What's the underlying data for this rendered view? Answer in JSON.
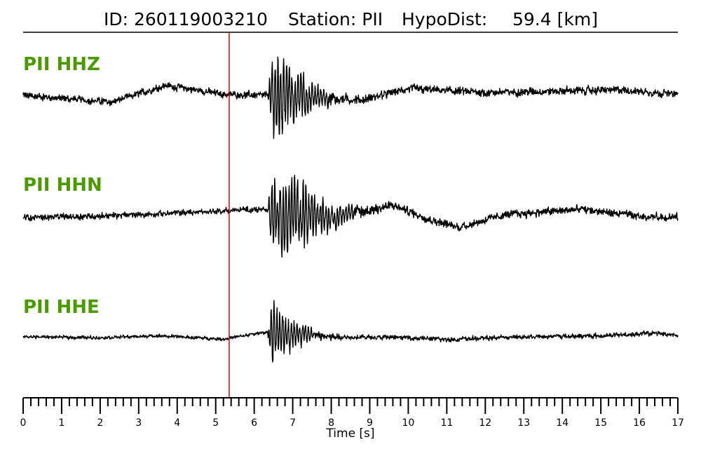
{
  "chart_data": {
    "type": "line",
    "title": {
      "id_label": "ID: 260119003210",
      "station_label": "Station: PII",
      "hypodist_label": "HypoDist:",
      "hypodist_value": "59.4 [km]"
    },
    "xlabel": "Time [s]",
    "xlim": [
      0,
      17
    ],
    "x_tick_labels": [
      "0",
      "1",
      "2",
      "3",
      "4",
      "5",
      "6",
      "7",
      "8",
      "9",
      "10",
      "11",
      "12",
      "13",
      "14",
      "15",
      "16",
      "17"
    ],
    "minor_tick_step": 0.2,
    "pick_time": 5.35,
    "pick_color": "#e00000",
    "label_color": "#4a9a00",
    "trace_color": "#000000",
    "series": [
      {
        "name": "PII HHZ",
        "noise_amplitude": 0.09,
        "signal_amplitude": 1.0,
        "envelope": [
          [
            0,
            0.09
          ],
          [
            6.35,
            0.09
          ],
          [
            6.45,
            1.0
          ],
          [
            6.9,
            0.8
          ],
          [
            7.3,
            0.5
          ],
          [
            7.8,
            0.22
          ],
          [
            8.5,
            0.12
          ],
          [
            9.5,
            0.1
          ],
          [
            17,
            0.1
          ]
        ],
        "long_period": [
          [
            0,
            0
          ],
          [
            2.3,
            -0.12
          ],
          [
            3.7,
            0.18
          ],
          [
            5.2,
            0.02
          ],
          [
            6.3,
            0
          ],
          [
            8.8,
            -0.08
          ],
          [
            10,
            0.12
          ],
          [
            12,
            0.05
          ],
          [
            14,
            0.08
          ],
          [
            15.5,
            0.1
          ],
          [
            17,
            0.02
          ]
        ]
      },
      {
        "name": "PII HHN",
        "noise_amplitude": 0.08,
        "signal_amplitude": 0.95,
        "envelope": [
          [
            0,
            0.08
          ],
          [
            6.35,
            0.08
          ],
          [
            6.45,
            0.95
          ],
          [
            7.2,
            0.9
          ],
          [
            7.6,
            0.55
          ],
          [
            8.2,
            0.25
          ],
          [
            9,
            0.14
          ],
          [
            10,
            0.1
          ],
          [
            17,
            0.1
          ]
        ],
        "long_period": [
          [
            0,
            0
          ],
          [
            1.5,
            0.02
          ],
          [
            3,
            0.05
          ],
          [
            4.5,
            0.1
          ],
          [
            6,
            0.15
          ],
          [
            8,
            0.0
          ],
          [
            9.6,
            0.22
          ],
          [
            10.6,
            -0.05
          ],
          [
            11.3,
            -0.18
          ],
          [
            12.5,
            0.05
          ],
          [
            14.5,
            0.15
          ],
          [
            16,
            0.02
          ],
          [
            17,
            0.0
          ]
        ]
      },
      {
        "name": "PII HHE",
        "noise_amplitude": 0.05,
        "signal_amplitude": 0.95,
        "envelope": [
          [
            0,
            0.05
          ],
          [
            6.35,
            0.05
          ],
          [
            6.45,
            0.95
          ],
          [
            6.8,
            0.6
          ],
          [
            7.2,
            0.35
          ],
          [
            7.6,
            0.15
          ],
          [
            8.5,
            0.07
          ],
          [
            17,
            0.07
          ]
        ],
        "long_period": [
          [
            0,
            0
          ],
          [
            2,
            -0.02
          ],
          [
            3.5,
            0.02
          ],
          [
            5.2,
            -0.05
          ],
          [
            6.3,
            0.1
          ],
          [
            8,
            0.0
          ],
          [
            10,
            -0.02
          ],
          [
            11,
            -0.06
          ],
          [
            13,
            0.0
          ],
          [
            15,
            0.02
          ],
          [
            16.5,
            0.08
          ],
          [
            17,
            0.03
          ]
        ]
      }
    ]
  }
}
